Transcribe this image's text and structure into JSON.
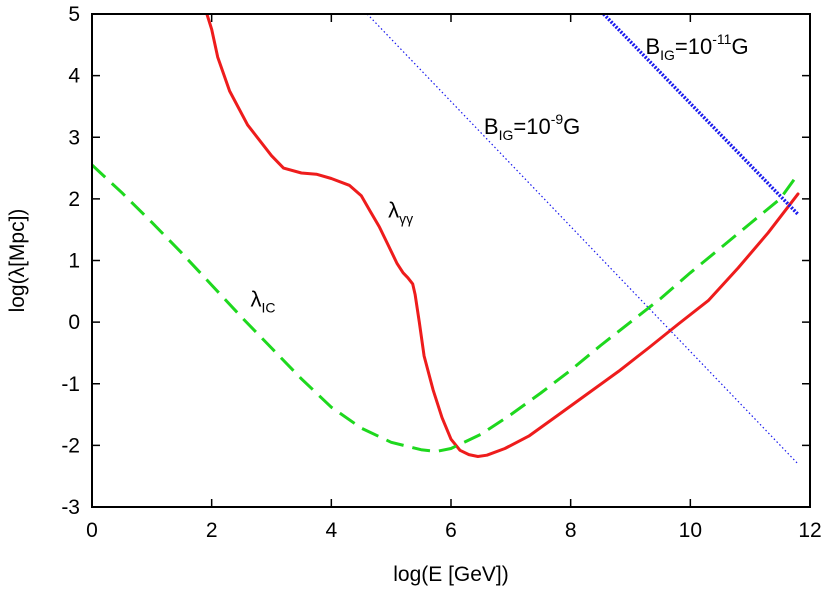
{
  "chart_data": {
    "type": "line",
    "title": "",
    "xlabel": "log(E [GeV])",
    "ylabel": "log(λ[Mpc])",
    "xlim": [
      0,
      12
    ],
    "ylim": [
      -3,
      5
    ],
    "x_ticks": [
      0,
      2,
      4,
      6,
      8,
      10,
      12
    ],
    "y_ticks": [
      -3,
      -2,
      -1,
      0,
      1,
      2,
      3,
      4,
      5
    ],
    "grid": false,
    "legend": "none",
    "series": [
      {
        "name": "lambda_gammagamma",
        "label_main": "λ",
        "label_sub": "γγ",
        "color": "#ee1c1c",
        "style": "solid",
        "x": [
          1.92,
          2.0,
          2.1,
          2.3,
          2.6,
          3.0,
          3.2,
          3.5,
          3.75,
          4.0,
          4.3,
          4.5,
          4.65,
          4.8,
          4.95,
          5.1,
          5.2,
          5.28,
          5.36,
          5.4,
          5.47,
          5.55,
          5.7,
          5.85,
          6.0,
          6.15,
          6.3,
          6.45,
          6.6,
          6.9,
          7.3,
          7.8,
          8.3,
          8.8,
          9.3,
          9.8,
          10.3,
          10.8,
          11.3,
          11.8
        ],
        "y": [
          5.0,
          4.75,
          4.3,
          3.75,
          3.2,
          2.7,
          2.5,
          2.42,
          2.4,
          2.33,
          2.22,
          2.05,
          1.8,
          1.55,
          1.25,
          0.95,
          0.8,
          0.72,
          0.62,
          0.45,
          0.0,
          -0.55,
          -1.1,
          -1.55,
          -1.9,
          -2.08,
          -2.15,
          -2.18,
          -2.16,
          -2.05,
          -1.85,
          -1.5,
          -1.15,
          -0.8,
          -0.42,
          -0.03,
          0.35,
          0.88,
          1.45,
          2.08
        ]
      },
      {
        "name": "lambda_IC",
        "label_main": "λ",
        "label_sub": "IC",
        "color": "#1ed81e",
        "style": "dashed",
        "x": [
          0.0,
          0.5,
          1.0,
          1.5,
          2.0,
          2.5,
          3.0,
          3.5,
          4.0,
          4.5,
          5.0,
          5.5,
          5.75,
          6.0,
          6.5,
          7.0,
          7.5,
          8.0,
          8.5,
          9.0,
          9.5,
          10.0,
          10.5,
          11.0,
          11.5,
          11.8
        ],
        "y": [
          2.55,
          2.1,
          1.62,
          1.12,
          0.6,
          0.08,
          -0.42,
          -0.92,
          -1.38,
          -1.72,
          -1.95,
          -2.07,
          -2.1,
          -2.05,
          -1.82,
          -1.5,
          -1.15,
          -0.78,
          -0.38,
          0.0,
          0.38,
          0.8,
          1.2,
          1.6,
          2.0,
          2.4
        ]
      },
      {
        "name": "B_IG_1e-9G",
        "color": "#1a1aee",
        "style": "fine-dotted",
        "x": [
          4.6,
          11.8
        ],
        "y": [
          5.0,
          -2.3
        ]
      },
      {
        "name": "B_IG_1e-11G",
        "color": "#1a1aee",
        "style": "bold-dotted",
        "x": [
          8.55,
          11.8
        ],
        "y": [
          5.0,
          1.75
        ]
      }
    ],
    "annotations": [
      {
        "id": "lgg",
        "main": "λ",
        "sub": "γγ",
        "x": 4.95,
        "y": 1.7
      },
      {
        "id": "lic",
        "main": "λ",
        "sub": "IC",
        "x": 2.65,
        "y": 0.25
      },
      {
        "id": "b9",
        "main": "B",
        "sub": "IG",
        "rest": "=10",
        "sup": "-9",
        "unit": "G",
        "x": 6.55,
        "y": 3.05
      },
      {
        "id": "b11",
        "main": "B",
        "sub": "IG",
        "rest": "=10",
        "sup": "-11",
        "unit": "G",
        "x": 9.25,
        "y": 4.35
      }
    ]
  }
}
